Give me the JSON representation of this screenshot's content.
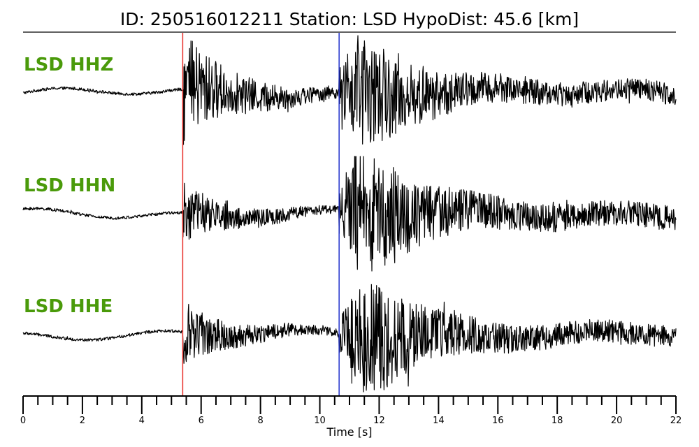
{
  "chart_data": {
    "type": "line",
    "title": "ID: 250516012211   Station: LSD   HypoDist:    45.6 [km]",
    "xlabel": "Time [s]",
    "xlim": [
      0,
      22
    ],
    "x_major_ticks": [
      0,
      2,
      4,
      6,
      8,
      10,
      12,
      14,
      16,
      18,
      20,
      22
    ],
    "x_minor_step": 0.5,
    "grid": false,
    "p_pick_time": 5.38,
    "s_pick_time": 10.65,
    "p_pick_color": "#e8302a",
    "s_pick_color": "#2233cc",
    "label_color": "#4a9a0a",
    "trace_color": "#000000",
    "series": [
      {
        "name": "LSD HHZ",
        "noise_amp": 0.03,
        "p_amp": 1.0,
        "s_amp": 0.85,
        "coda_amp": 0.22
      },
      {
        "name": "LSD HHN",
        "noise_amp": 0.03,
        "p_amp": 0.55,
        "s_amp": 1.0,
        "coda_amp": 0.25
      },
      {
        "name": "LSD HHE",
        "noise_amp": 0.03,
        "p_amp": 0.55,
        "s_amp": 1.0,
        "coda_amp": 0.22
      }
    ]
  }
}
